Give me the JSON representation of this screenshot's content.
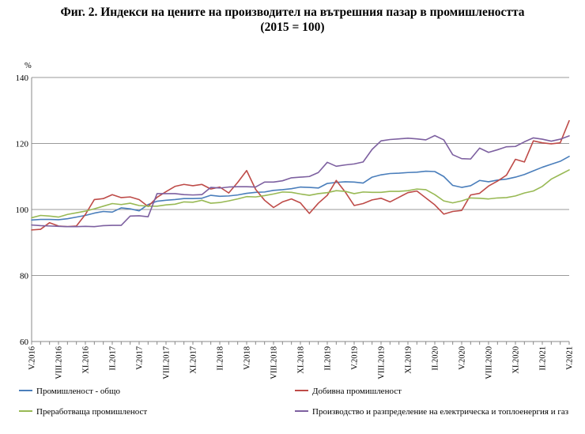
{
  "title_line1": "Фиг. 2. Индекси на цените на производител на вътрешния пазар в промишлеността",
  "title_line2": "(2015 = 100)",
  "chart_data": {
    "type": "line",
    "unit_label": "%",
    "ylim": [
      60,
      140
    ],
    "yticks": [
      60,
      80,
      100,
      120,
      140
    ],
    "grid": "horizontal",
    "legend_position": "bottom",
    "x": [
      "V.2016",
      "VI.2016",
      "VII.2016",
      "VIII.2016",
      "IX.2016",
      "X.2016",
      "XI.2016",
      "XII.2016",
      "I.2017",
      "II.2017",
      "III.2017",
      "IV.2017",
      "V.2017",
      "VI.2017",
      "VII.2017",
      "VIII.2017",
      "IX.2017",
      "X.2017",
      "XI.2017",
      "XII.2017",
      "I.2018",
      "II.2018",
      "III.2018",
      "IV.2018",
      "V.2018",
      "VI.2018",
      "VII.2018",
      "VIII.2018",
      "IX.2018",
      "X.2018",
      "XI.2018",
      "XII.2018",
      "I.2019",
      "II.2019",
      "III.2019",
      "IV.2019",
      "V.2019",
      "VI.2019",
      "VII.2019",
      "VIII.2019",
      "IX.2019",
      "X.2019",
      "XI.2019",
      "XII.2019",
      "I.2020",
      "II.2020",
      "III.2020",
      "IV.2020",
      "V.2020",
      "VI.2020",
      "VII.2020",
      "VIII.2020",
      "IX.2020",
      "X.2020",
      "XI.2020",
      "XII.2020",
      "I.2021",
      "II.2021",
      "III.2021",
      "IV.2021",
      "V.2021"
    ],
    "x_tick_labels": [
      "V.2016",
      "VIII.2016",
      "XI.2016",
      "II.2017",
      "V.2017",
      "VIII.2017",
      "XI.2017",
      "II.2018",
      "V.2018",
      "VIII.2018",
      "XI.2018",
      "II.2019",
      "V.2019",
      "VIII.2019",
      "XI.2019",
      "II.2020",
      "V.2020",
      "VIII.2020",
      "XI.2020",
      "II.2021",
      "V.2021"
    ],
    "series": [
      {
        "name": "Промишленост - общо",
        "color": "#4a7ebb",
        "values": [
          96.8,
          97.0,
          97.0,
          96.9,
          97.2,
          97.7,
          98.2,
          98.9,
          99.4,
          99.2,
          100.5,
          100.2,
          99.6,
          101.5,
          102.5,
          102.8,
          103.0,
          103.3,
          103.3,
          103.4,
          104.3,
          104.0,
          104.1,
          104.4,
          104.9,
          105.2,
          105.3,
          105.8,
          106.0,
          106.3,
          106.8,
          106.7,
          106.5,
          107.9,
          108.2,
          108.4,
          108.3,
          108.0,
          109.8,
          110.5,
          110.9,
          111.0,
          111.2,
          111.3,
          111.6,
          111.5,
          110.0,
          107.3,
          106.7,
          107.2,
          108.8,
          108.4,
          108.9,
          109.2,
          109.8,
          110.6,
          111.7,
          112.8,
          113.7,
          114.6,
          116.1
        ]
      },
      {
        "name": "Добивна промишленост",
        "color": "#be4b48",
        "values": [
          93.8,
          94.0,
          96.0,
          95.0,
          94.8,
          95.0,
          98.5,
          103.0,
          103.3,
          104.5,
          103.6,
          103.8,
          103.0,
          100.9,
          103.7,
          105.4,
          107.0,
          107.6,
          107.2,
          107.6,
          106.2,
          106.8,
          105.0,
          108.2,
          111.8,
          106.1,
          102.8,
          100.6,
          102.3,
          103.2,
          102.0,
          98.8,
          101.9,
          104.3,
          108.8,
          105.3,
          101.2,
          101.8,
          102.9,
          103.4,
          102.3,
          103.7,
          105.1,
          105.6,
          103.5,
          101.4,
          98.6,
          99.4,
          99.7,
          104.4,
          104.9,
          107.1,
          108.6,
          110.4,
          115.2,
          114.4,
          120.8,
          120.2,
          119.9,
          120.2,
          126.9
        ]
      },
      {
        "name": "Преработваща промишленост",
        "color": "#98b954",
        "values": [
          97.5,
          98.2,
          98.0,
          97.7,
          98.5,
          99.0,
          99.5,
          100.2,
          101.0,
          101.8,
          101.5,
          101.9,
          101.2,
          101.0,
          101.0,
          101.4,
          101.6,
          102.3,
          102.2,
          102.8,
          101.9,
          102.1,
          102.6,
          103.2,
          103.9,
          103.8,
          104.2,
          104.7,
          105.3,
          105.2,
          104.7,
          104.3,
          104.8,
          105.1,
          105.7,
          105.5,
          104.8,
          105.3,
          105.2,
          105.2,
          105.5,
          105.5,
          105.7,
          106.2,
          106.0,
          104.5,
          102.6,
          102.0,
          102.6,
          103.5,
          103.4,
          103.2,
          103.5,
          103.6,
          104.1,
          105.0,
          105.6,
          107.0,
          109.2,
          110.6,
          112.0
        ]
      },
      {
        "name": "Производство и разпределение на електрическа и топлоенергия и газ",
        "color": "#7d60a0",
        "values": [
          95.3,
          95.1,
          95.0,
          94.9,
          94.8,
          94.8,
          94.9,
          94.8,
          95.1,
          95.2,
          95.2,
          98.0,
          98.1,
          97.8,
          104.8,
          104.8,
          104.8,
          104.5,
          104.4,
          104.5,
          106.7,
          106.5,
          106.8,
          106.9,
          106.9,
          106.8,
          108.3,
          108.3,
          108.7,
          109.6,
          109.8,
          110.0,
          111.2,
          114.3,
          113.1,
          113.5,
          113.8,
          114.4,
          118.2,
          120.8,
          121.2,
          121.4,
          121.6,
          121.4,
          121.1,
          122.4,
          121.1,
          116.6,
          115.4,
          115.3,
          118.6,
          117.3,
          118.1,
          119.0,
          119.1,
          120.5,
          121.7,
          121.3,
          120.7,
          121.3,
          122.3
        ]
      }
    ]
  }
}
